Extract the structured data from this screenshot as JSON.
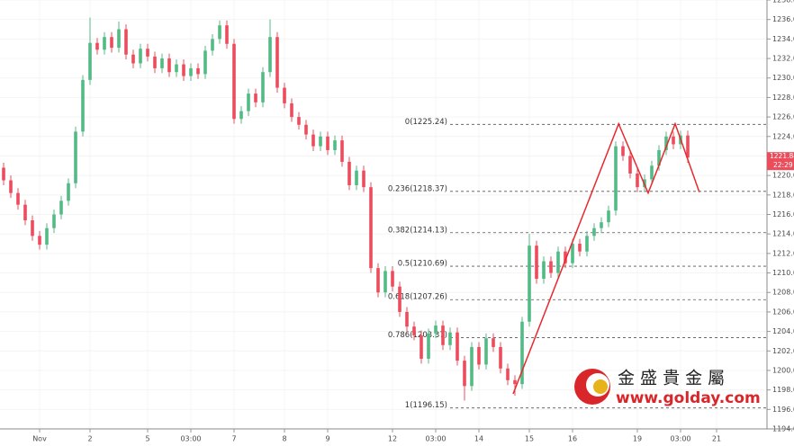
{
  "chart_data": {
    "type": "candlestick",
    "up_color": "#53b987",
    "down_color": "#eb4d5c",
    "ylim": [
      1194,
      1238
    ],
    "yticks": [
      {
        "value": 1194,
        "label": "1194.00"
      },
      {
        "value": 1196,
        "label": "1196.00"
      },
      {
        "value": 1198,
        "label": "1198.00"
      },
      {
        "value": 1200,
        "label": "1200.00"
      },
      {
        "value": 1202,
        "label": "1202.00"
      },
      {
        "value": 1204,
        "label": "1204.00"
      },
      {
        "value": 1206,
        "label": "1206.00"
      },
      {
        "value": 1208,
        "label": "1208.00"
      },
      {
        "value": 1210,
        "label": "1210.00"
      },
      {
        "value": 1212,
        "label": "1212.00"
      },
      {
        "value": 1214,
        "label": "1214.00"
      },
      {
        "value": 1216,
        "label": "1216.00"
      },
      {
        "value": 1218,
        "label": "1218.00"
      },
      {
        "value": 1220,
        "label": "1220.00"
      },
      {
        "value": 1222,
        "label": "1222.00"
      },
      {
        "value": 1224,
        "label": "1224.00"
      },
      {
        "value": 1226,
        "label": "1226.00"
      },
      {
        "value": 1228,
        "label": "1228.00"
      },
      {
        "value": 1230,
        "label": "1230.00"
      },
      {
        "value": 1232,
        "label": "1232.00"
      },
      {
        "value": 1234,
        "label": "1234.00"
      },
      {
        "value": 1236,
        "label": "1236.00"
      },
      {
        "value": 1238,
        "label": "1238.00"
      }
    ],
    "xlim": [
      -0.5,
      106
    ],
    "xticks": [
      {
        "value": 5,
        "label": "Nov"
      },
      {
        "value": 12,
        "label": "2"
      },
      {
        "value": 20,
        "label": "5"
      },
      {
        "value": 26,
        "label": "03:00"
      },
      {
        "value": 32,
        "label": "7"
      },
      {
        "value": 39,
        "label": "8"
      },
      {
        "value": 45,
        "label": "9"
      },
      {
        "value": 54,
        "label": "12"
      },
      {
        "value": 60,
        "label": "03:00"
      },
      {
        "value": 66,
        "label": "14"
      },
      {
        "value": 73,
        "label": "15"
      },
      {
        "value": 79,
        "label": "16"
      },
      {
        "value": 88,
        "label": "19"
      },
      {
        "value": 94,
        "label": "03:00"
      },
      {
        "value": 99,
        "label": "21"
      }
    ],
    "grid": true,
    "open": [
      1220.8,
      1219.5,
      1218.2,
      1217.0,
      1215.4,
      1213.8,
      1212.9,
      1214.6,
      1216.0,
      1217.4,
      1219.2,
      1224.5,
      1229.8,
      1233.6,
      1232.9,
      1234.2,
      1233.1,
      1235.0,
      1232.4,
      1231.5,
      1233.0,
      1232.2,
      1231.0,
      1232.0,
      1230.6,
      1231.4,
      1230.2,
      1231.0,
      1230.4,
      1232.8,
      1234.0,
      1235.4,
      1233.5,
      1225.8,
      1226.6,
      1228.4,
      1227.5,
      1230.6,
      1234.2,
      1229.0,
      1227.4,
      1226.0,
      1225.2,
      1224.2,
      1223.0,
      1224.0,
      1222.6,
      1223.6,
      1221.4,
      1219.0,
      1220.5,
      1218.8,
      1210.5,
      1208.0,
      1210.2,
      1208.6,
      1206.0,
      1204.5,
      1203.6,
      1201.2,
      1203.8,
      1204.6,
      1202.6,
      1203.9,
      1201.0,
      1198.4,
      1202.4,
      1200.6,
      1203.3,
      1202.4,
      1200.2,
      1199.0,
      1198.6,
      1205.0,
      1212.8,
      1209.4,
      1211.2,
      1210.0,
      1212.2,
      1211.0,
      1213.0,
      1212.2,
      1213.8,
      1214.6,
      1215.2,
      1216.4,
      1223.0,
      1222.0,
      1220.2,
      1218.8,
      1219.6,
      1221.0,
      1222.6,
      1224.0,
      1223.2,
      1224.1
    ],
    "high": [
      1221.3,
      1220.0,
      1218.7,
      1217.5,
      1215.9,
      1214.3,
      1215.1,
      1216.5,
      1217.9,
      1219.7,
      1225.0,
      1230.3,
      1236.2,
      1234.1,
      1234.7,
      1234.7,
      1235.8,
      1235.5,
      1232.9,
      1233.5,
      1233.5,
      1232.7,
      1232.5,
      1232.5,
      1231.9,
      1231.9,
      1231.5,
      1231.5,
      1233.3,
      1234.5,
      1235.9,
      1235.9,
      1234.0,
      1227.1,
      1228.9,
      1228.9,
      1231.1,
      1236.0,
      1234.7,
      1229.5,
      1227.9,
      1226.5,
      1225.7,
      1224.7,
      1224.5,
      1224.5,
      1224.1,
      1224.1,
      1221.9,
      1221.0,
      1221.0,
      1219.3,
      1211.0,
      1210.7,
      1210.7,
      1209.1,
      1206.5,
      1205.0,
      1204.1,
      1204.3,
      1205.1,
      1205.1,
      1204.4,
      1204.4,
      1201.5,
      1202.9,
      1202.9,
      1203.8,
      1203.8,
      1202.9,
      1200.7,
      1199.5,
      1205.5,
      1214.0,
      1213.3,
      1211.7,
      1211.7,
      1212.7,
      1212.7,
      1213.5,
      1213.5,
      1214.3,
      1215.1,
      1215.7,
      1216.9,
      1223.5,
      1223.5,
      1222.5,
      1220.7,
      1220.1,
      1221.5,
      1223.1,
      1224.5,
      1224.5,
      1224.6,
      1224.6
    ],
    "low": [
      1219.0,
      1217.7,
      1216.5,
      1214.9,
      1213.3,
      1212.4,
      1212.4,
      1214.1,
      1215.5,
      1216.9,
      1218.7,
      1224.0,
      1229.3,
      1232.4,
      1232.4,
      1232.6,
      1232.6,
      1231.9,
      1231.0,
      1231.0,
      1231.7,
      1230.5,
      1230.5,
      1230.1,
      1230.1,
      1229.7,
      1229.7,
      1229.9,
      1229.9,
      1232.3,
      1233.5,
      1233.0,
      1225.3,
      1225.3,
      1226.1,
      1227.0,
      1227.0,
      1230.1,
      1228.5,
      1226.9,
      1225.5,
      1224.7,
      1223.7,
      1222.5,
      1222.5,
      1222.1,
      1222.1,
      1220.9,
      1218.5,
      1218.5,
      1218.3,
      1210.0,
      1207.5,
      1207.5,
      1208.1,
      1205.5,
      1204.0,
      1203.1,
      1200.7,
      1200.7,
      1203.3,
      1202.1,
      1202.1,
      1200.5,
      1196.9,
      1197.9,
      1200.1,
      1200.1,
      1201.9,
      1199.7,
      1198.5,
      1197.4,
      1198.1,
      1204.5,
      1208.9,
      1208.9,
      1209.5,
      1209.5,
      1210.5,
      1210.5,
      1211.7,
      1211.7,
      1213.3,
      1214.1,
      1214.7,
      1215.9,
      1221.5,
      1219.7,
      1218.3,
      1218.3,
      1219.1,
      1220.5,
      1222.1,
      1222.7,
      1222.7,
      1221.3
    ],
    "close": [
      1219.5,
      1218.2,
      1217.0,
      1215.4,
      1213.8,
      1212.9,
      1214.6,
      1216.0,
      1217.4,
      1219.2,
      1224.5,
      1229.8,
      1233.6,
      1232.9,
      1234.2,
      1233.1,
      1235.0,
      1232.4,
      1231.5,
      1233.0,
      1232.2,
      1231.0,
      1232.0,
      1230.6,
      1231.4,
      1230.2,
      1231.0,
      1230.4,
      1232.8,
      1234.0,
      1235.4,
      1233.5,
      1225.8,
      1226.6,
      1228.4,
      1227.5,
      1230.6,
      1234.2,
      1229.0,
      1227.4,
      1226.0,
      1225.2,
      1224.2,
      1223.0,
      1224.0,
      1222.6,
      1223.6,
      1221.4,
      1219.0,
      1220.5,
      1218.8,
      1210.5,
      1208.0,
      1210.2,
      1208.6,
      1206.0,
      1204.5,
      1203.6,
      1201.2,
      1203.8,
      1204.6,
      1202.6,
      1203.9,
      1201.0,
      1198.4,
      1202.4,
      1200.6,
      1203.3,
      1202.4,
      1200.2,
      1199.0,
      1198.6,
      1205.0,
      1212.8,
      1209.4,
      1211.2,
      1210.0,
      1212.2,
      1211.0,
      1213.0,
      1212.2,
      1213.8,
      1214.6,
      1215.2,
      1216.4,
      1223.0,
      1222.0,
      1220.2,
      1218.8,
      1219.6,
      1221.0,
      1222.6,
      1224.0,
      1223.2,
      1224.1,
      1221.84
    ],
    "fib_levels": [
      {
        "label": "0(1225.24)",
        "value": 1225.24
      },
      {
        "label": "0.236(1218.37)",
        "value": 1218.37
      },
      {
        "label": "0.382(1214.13)",
        "value": 1214.13
      },
      {
        "label": "0.5(1210.69)",
        "value": 1210.69
      },
      {
        "label": "0.618(1207.26)",
        "value": 1207.26
      },
      {
        "label": "0.786(1203.37)",
        "value": 1203.37
      },
      {
        "label": "1(1196.15)",
        "value": 1196.15
      }
    ],
    "pattern": {
      "color": "#e8282e",
      "x": [
        70.75,
        85.4,
        89.5,
        93.25,
        96.6
      ],
      "y": [
        1197.6,
        1225.3,
        1218.2,
        1225.3,
        1218.3
      ]
    },
    "last_price": 1221.84,
    "last_time": "22:29",
    "last_color": "#eb4d5c",
    "logo": {
      "name": "金 盛 貴 金 屬",
      "url": "www.golday.com"
    }
  }
}
